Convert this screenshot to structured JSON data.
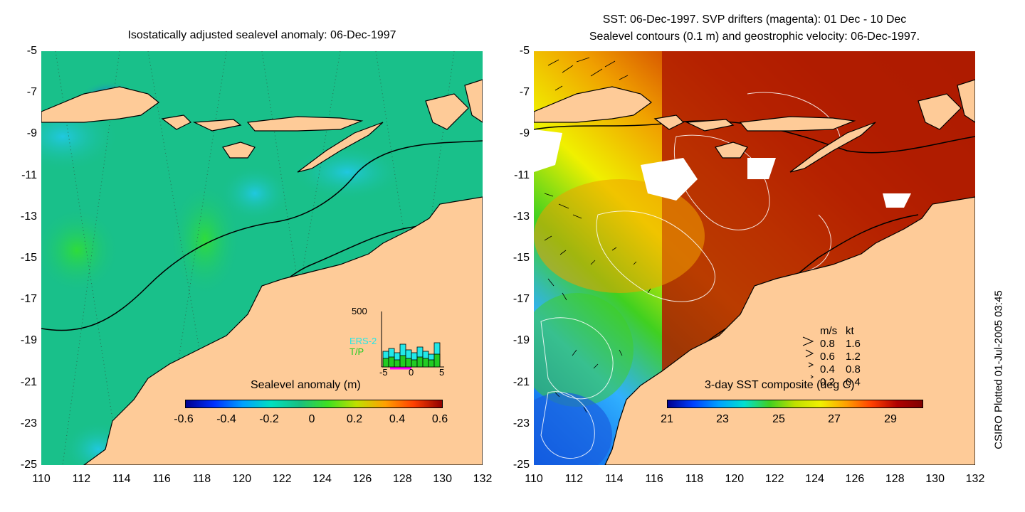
{
  "left": {
    "title": "Isostatically adjusted sealevel anomaly: 06-Dec-1997",
    "colorbar": {
      "label": "Sealevel anomaly (m)",
      "ticks": [
        "-0.6",
        "-0.4",
        "-0.2",
        "0",
        "0.2",
        "0.4",
        "0.6"
      ]
    },
    "histogram": {
      "ymax_label": "500",
      "series": [
        {
          "name": "ERS-2",
          "color": "#22e8e8"
        },
        {
          "name": "T/P",
          "color": "#22cc22"
        }
      ],
      "xticks": [
        "-5",
        "0",
        "5"
      ]
    }
  },
  "right": {
    "title_line1": "SST: 06-Dec-1997. SVP drifters (magenta): 01 Dec - 10 Dec",
    "title_line2": "Sealevel contours (0.1 m) and geostrophic velocity: 06-Dec-1997.",
    "colorbar": {
      "label": "3-day SST composite (deg C)",
      "ticks": [
        "21",
        "23",
        "25",
        "27",
        "29"
      ]
    },
    "speed_legend": {
      "header_ms": "m/s",
      "header_kt": "kt",
      "rows": [
        {
          "ms": "0.8",
          "kt": "1.6"
        },
        {
          "ms": "0.6",
          "kt": "1.2"
        },
        {
          "ms": "0.4",
          "kt": "0.8"
        },
        {
          "ms": "0.2",
          "kt": "0.4"
        }
      ]
    }
  },
  "axes": {
    "y_ticks": [
      "-5",
      "-7",
      "-9",
      "-11",
      "-13",
      "-15",
      "-17",
      "-19",
      "-21",
      "-23",
      "-25"
    ],
    "x_ticks": [
      "110",
      "112",
      "114",
      "116",
      "118",
      "120",
      "122",
      "124",
      "126",
      "128",
      "130",
      "132"
    ],
    "lat_range": [
      -25,
      -5
    ],
    "lon_range": [
      110,
      132
    ]
  },
  "colors": {
    "land": "#fecb98",
    "ocean_sla": "#19c08a",
    "sst_warm": "#b01c00",
    "sst_mid": "#f0a000",
    "sst_cool": "#3aa0ff"
  },
  "footer": "CSIRO Plotted 01-Jul-2005 03:45"
}
